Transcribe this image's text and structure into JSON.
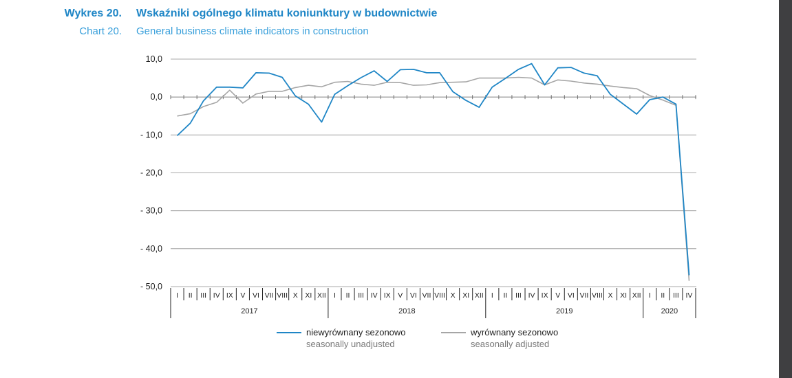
{
  "title": {
    "pl_label": "Wykres 20.",
    "pl_text": "Wskaźniki ogólnego klimatu koniunktury w budownictwie",
    "en_label": "Chart 20.",
    "en_text": "General business climate indicators in construction"
  },
  "colors": {
    "unadjusted": "#1f86c6",
    "adjusted": "#a6a6a6",
    "title": "#1f86c6",
    "grid": "#8c8c8c",
    "scrollbar": "#3f3f41"
  },
  "chart_data": {
    "type": "line",
    "ylim": [
      -50,
      10
    ],
    "yticks": [
      10,
      0,
      -10,
      -20,
      -30,
      -40,
      -50
    ],
    "ytick_labels": [
      "10,0",
      "0,0",
      "- 10,0",
      "- 20,0",
      "- 30,0",
      "- 40,0",
      "- 50,0"
    ],
    "grid": true,
    "legend_position": "bottom",
    "month_labels": [
      "I",
      "II",
      "III",
      "IV",
      "IX",
      "V",
      "VI",
      "VII",
      "VIII",
      "X",
      "XI",
      "XII",
      "I",
      "II",
      "III",
      "IV",
      "IX",
      "V",
      "VI",
      "VII",
      "VIII",
      "X",
      "XI",
      "XII",
      "I",
      "II",
      "III",
      "IV",
      "IX",
      "V",
      "VI",
      "VII",
      "VIII",
      "X",
      "XI",
      "XII",
      "I",
      "II",
      "III",
      "IV"
    ],
    "years": [
      {
        "label": "2017",
        "months": 12
      },
      {
        "label": "2018",
        "months": 12
      },
      {
        "label": "2019",
        "months": 12
      },
      {
        "label": "2020",
        "months": 4
      }
    ],
    "series": [
      {
        "name": "niewyrównany sezonowo",
        "name_en": "seasonally unadjusted",
        "color": "#1f86c6",
        "values": [
          -10.2,
          -6.9,
          -1.0,
          2.6,
          2.6,
          2.4,
          6.4,
          6.3,
          5.2,
          0.3,
          -1.9,
          -6.6,
          0.7,
          3.0,
          5.1,
          6.9,
          4.1,
          7.2,
          7.3,
          6.4,
          6.4,
          1.4,
          -0.9,
          -2.7,
          2.6,
          4.9,
          7.3,
          8.8,
          3.2,
          7.7,
          7.8,
          6.3,
          5.6,
          0.7,
          -1.9,
          -4.5,
          -0.7,
          0.0,
          -1.9,
          -47.0
        ]
      },
      {
        "name": "wyrównany sezonowo",
        "name_en": "seasonally adjusted",
        "color": "#a6a6a6",
        "values": [
          -5.0,
          -4.4,
          -2.5,
          -1.4,
          1.8,
          -1.6,
          0.8,
          1.5,
          1.5,
          2.5,
          3.1,
          2.7,
          3.9,
          4.1,
          3.4,
          3.1,
          3.9,
          3.8,
          3.1,
          3.2,
          3.8,
          3.9,
          4.0,
          5.0,
          5.0,
          5.0,
          5.2,
          5.0,
          3.2,
          4.5,
          4.2,
          3.7,
          3.4,
          2.9,
          2.5,
          2.2,
          0.4,
          -0.8,
          -2.2,
          -48.5
        ]
      }
    ]
  }
}
